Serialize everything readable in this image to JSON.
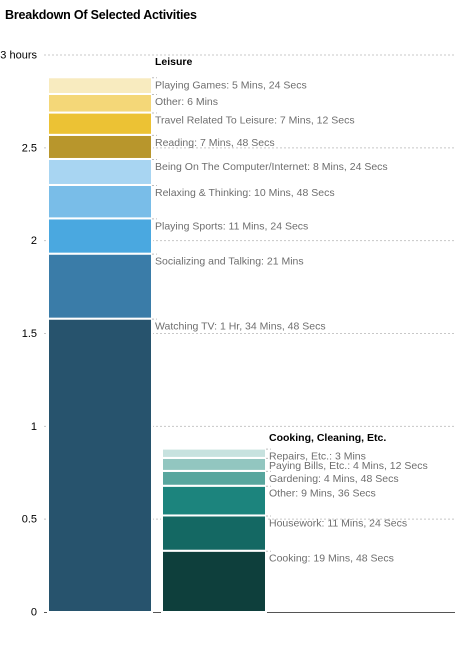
{
  "title": "Breakdown Of Selected Activities",
  "chart_data": {
    "type": "bar",
    "stacked": true,
    "units": "hours",
    "ylim": [
      0,
      3
    ],
    "y_ticks": [
      {
        "value": 0,
        "label": "0"
      },
      {
        "value": 0.5,
        "label": "0.5"
      },
      {
        "value": 1,
        "label": "1"
      },
      {
        "value": 1.5,
        "label": "1.5"
      },
      {
        "value": 2,
        "label": "2"
      },
      {
        "value": 2.5,
        "label": "2.5"
      },
      {
        "value": 3,
        "label": "3 hours"
      }
    ],
    "grid": true,
    "groups": [
      {
        "name": "Leisure",
        "segments": [
          {
            "label": "Watching TV: 1 Hr, 34 Mins, 48 Secs",
            "value": 1.58,
            "color": "#27536d"
          },
          {
            "label": "Socializing and Talking: 21 Mins",
            "value": 0.35,
            "color": "#3a7ca8"
          },
          {
            "label": "Playing Sports: 11 Mins, 24 Secs",
            "value": 0.19,
            "color": "#4aa8e0"
          },
          {
            "label": "Relaxing & Thinking: 10 Mins, 48 Secs",
            "value": 0.18,
            "color": "#79bde8"
          },
          {
            "label": "Being On The Computer/Internet: 8 Mins, 24 Secs",
            "value": 0.14,
            "color": "#a8d5f2"
          },
          {
            "label": "Reading: 7 Mins, 48 Secs",
            "value": 0.13,
            "color": "#b8962c"
          },
          {
            "label": "Travel Related To Leisure: 7 Mins, 12 Secs",
            "value": 0.12,
            "color": "#ecc234"
          },
          {
            "label": "Other: 6 Mins",
            "value": 0.1,
            "color": "#f4d778"
          },
          {
            "label": "Playing Games: 5 Mins, 24 Secs",
            "value": 0.09,
            "color": "#f8ebbf"
          }
        ]
      },
      {
        "name": "Cooking, Cleaning, Etc.",
        "segments": [
          {
            "label": "Cooking: 19 Mins, 48 Secs",
            "value": 0.33,
            "color": "#0e3f3c"
          },
          {
            "label": "Housework: 11 Mins, 24 Secs",
            "value": 0.19,
            "color": "#146863"
          },
          {
            "label": "Other: 9 Mins, 36 Secs",
            "value": 0.16,
            "color": "#1c847d"
          },
          {
            "label": "Gardening: 4 Mins, 48 Secs",
            "value": 0.08,
            "color": "#58a69e"
          },
          {
            "label": "Paying Bills, Etc.: 4 Mins, 12 Secs",
            "value": 0.07,
            "color": "#92c6c0"
          },
          {
            "label": "Repairs, Etc.: 3 Mins",
            "value": 0.05,
            "color": "#c7e2df"
          }
        ]
      }
    ]
  }
}
